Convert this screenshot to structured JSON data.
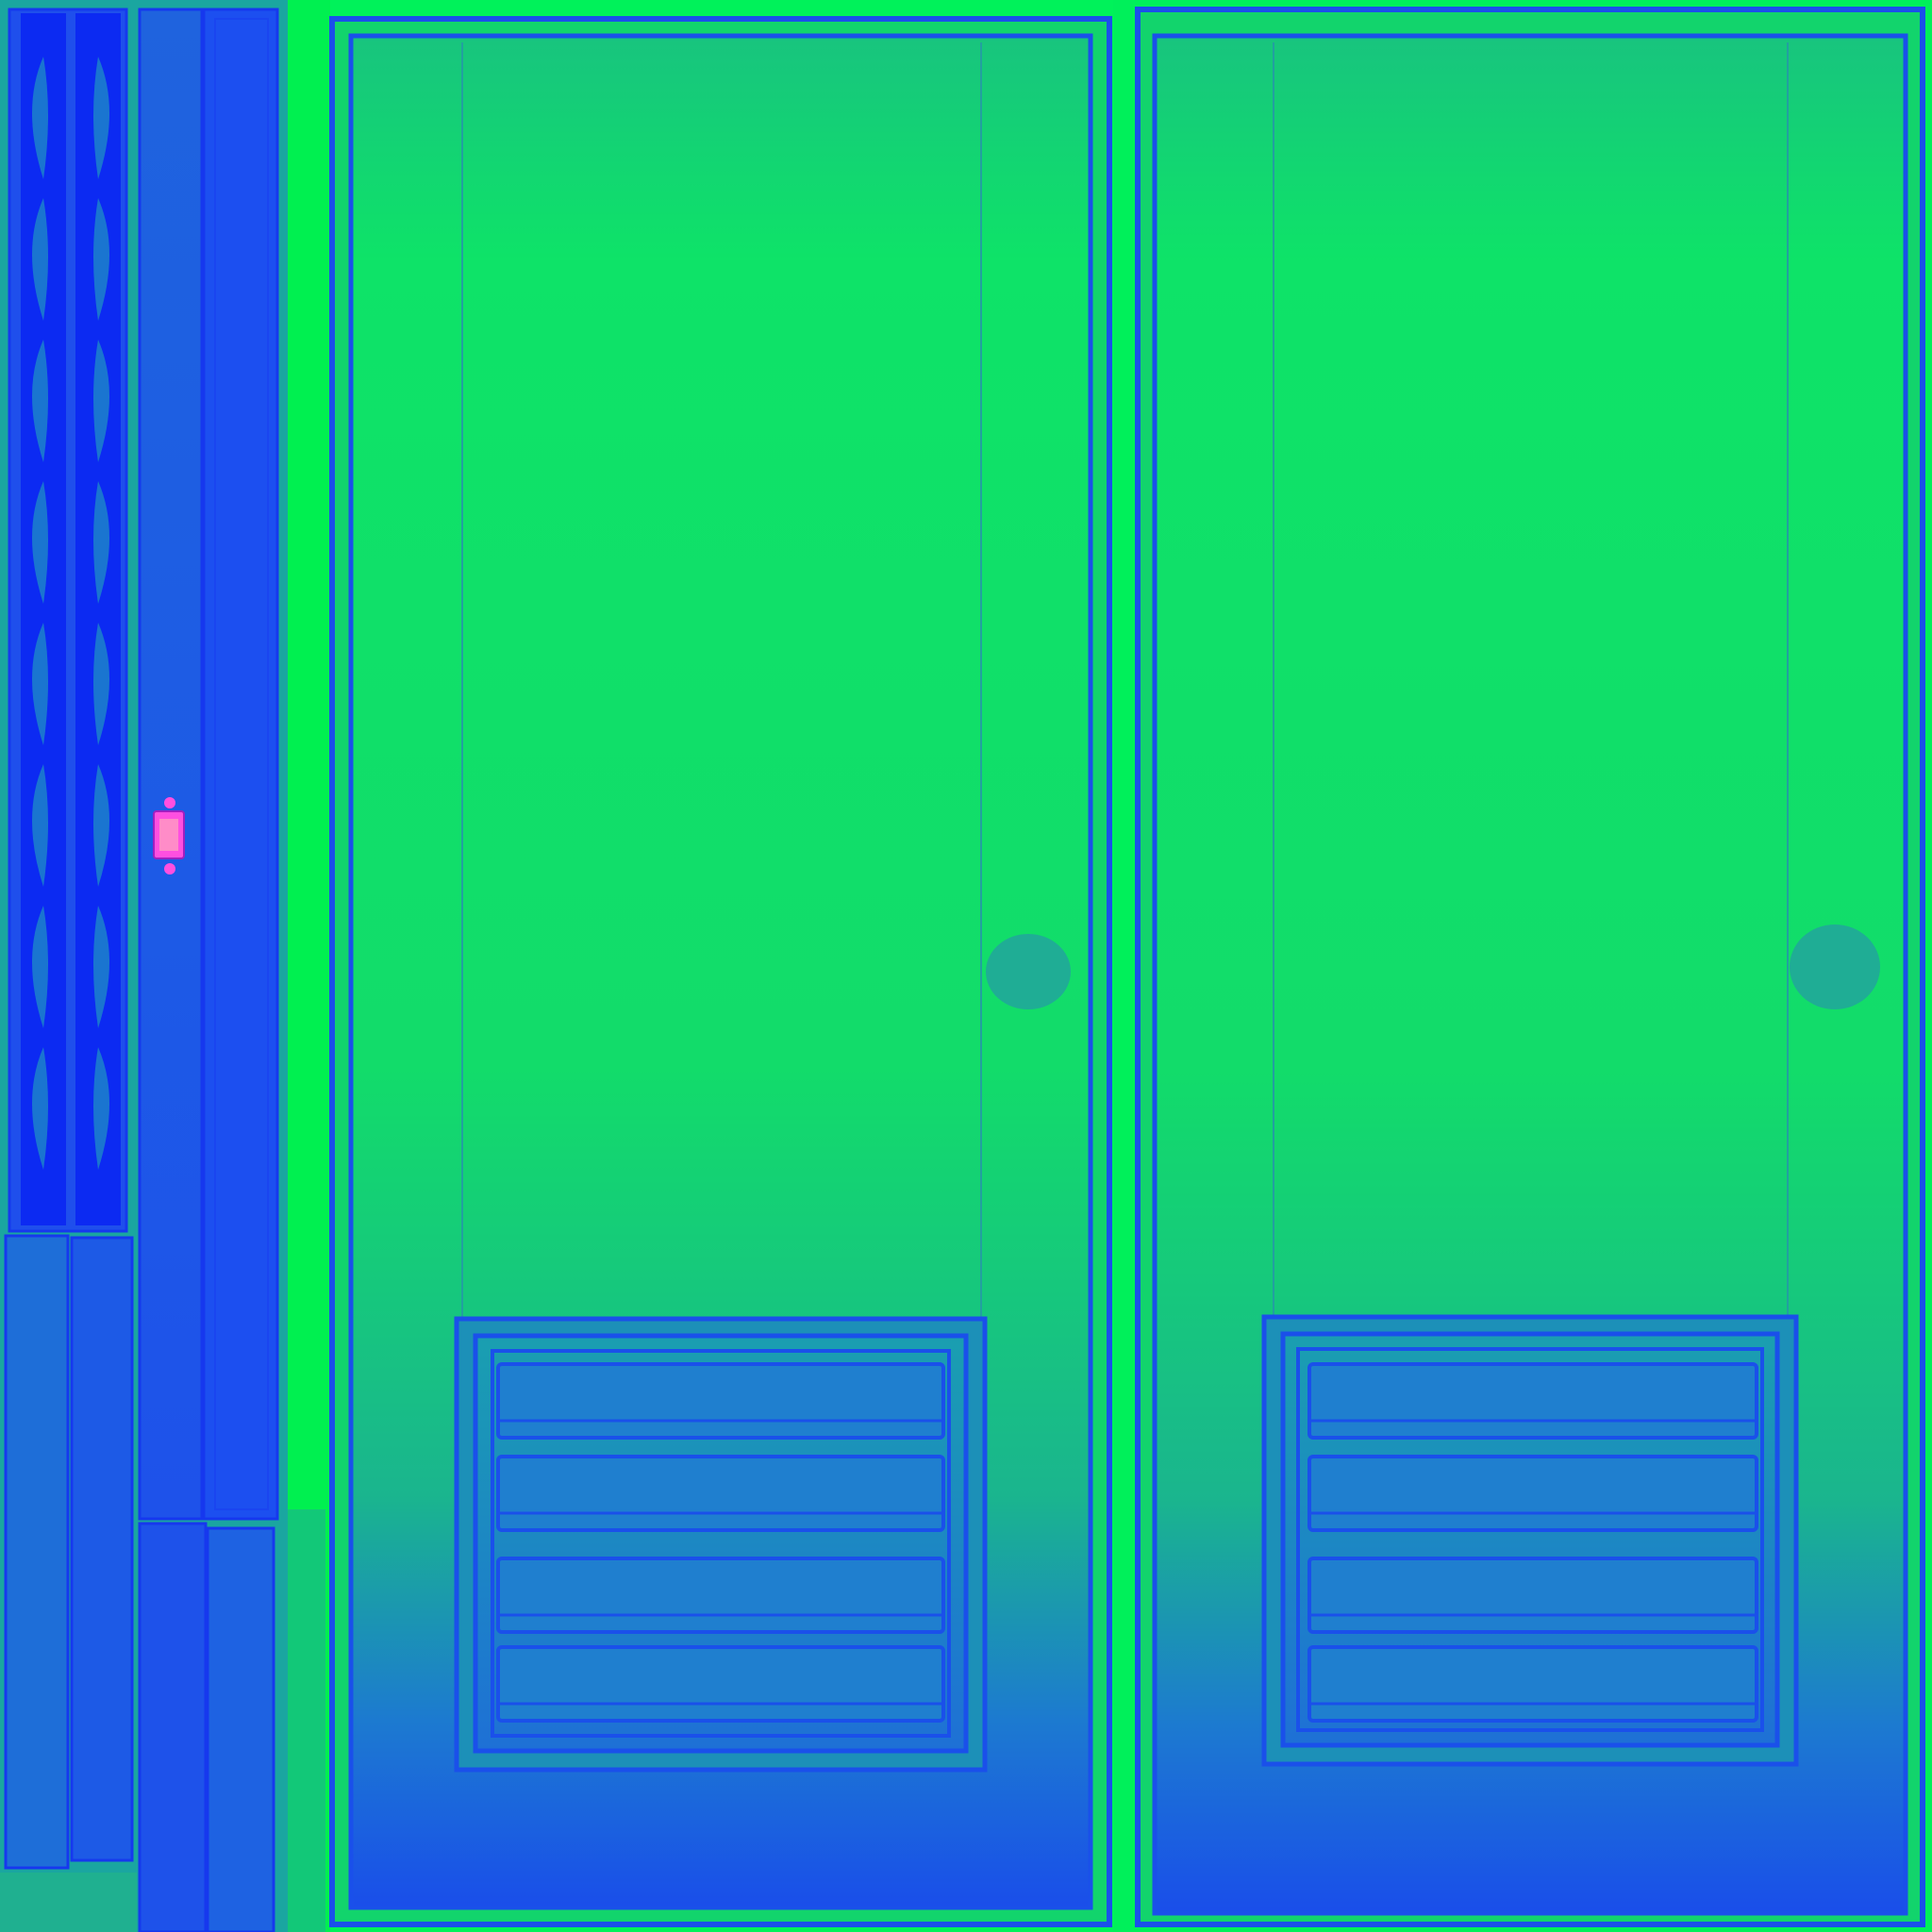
{
  "texture": {
    "kind": "uv-texture-atlas",
    "visible_text": [],
    "colors": {
      "bright_green": "#00f25a",
      "field_green": "#10e064",
      "mid_teal": "#1aa6a0",
      "strip_blue": "#1f5ae6",
      "deep_blue": "#0a22f2",
      "line_blue": "#1638ee",
      "marker_magenta": "#ff4fe0",
      "marker_pink": "#ff8cc8"
    },
    "elements": {
      "left_strip_panels": 4,
      "doors": 2,
      "vent_slats_per_door": 4,
      "magenta_marker": 1
    }
  }
}
